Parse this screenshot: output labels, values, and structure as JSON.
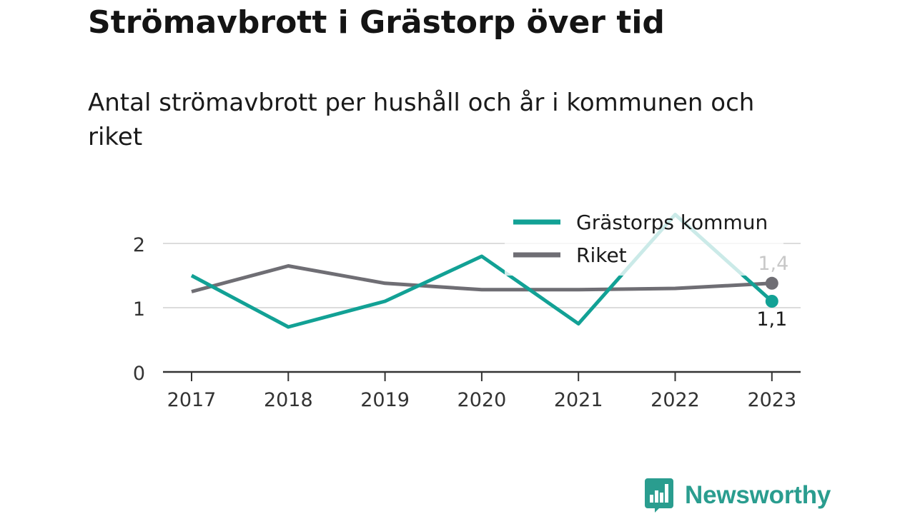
{
  "header": {
    "title": "Strömavbrott i Grästorp över tid",
    "subtitle": "Antal strömavbrott per hushåll och år i kommunen och riket"
  },
  "chart_data": {
    "type": "line",
    "title": "Strömavbrott i Grästorp över tid",
    "subtitle": "Antal strömavbrott per hushåll och år i kommunen och riket",
    "x": [
      "2017",
      "2018",
      "2019",
      "2020",
      "2021",
      "2022",
      "2023"
    ],
    "yticks": [
      "0",
      "1",
      "2"
    ],
    "ylim": [
      0,
      2.5
    ],
    "grid": true,
    "legend_position": "top-right",
    "series": [
      {
        "name": "Grästorps kommun",
        "color": "#12a195",
        "values": [
          1.5,
          0.7,
          1.1,
          1.8,
          0.75,
          2.45,
          1.1
        ],
        "end_label": "1,1"
      },
      {
        "name": "Riket",
        "color": "#6f6e74",
        "values": [
          1.25,
          1.65,
          1.38,
          1.28,
          1.28,
          1.3,
          1.38
        ],
        "end_label": "1,4"
      }
    ]
  },
  "branding": {
    "logo_text": "Newsworthy",
    "logo_icon": "bar-chart-speech-bubble-icon",
    "logo_color": "#2a9d8f"
  }
}
